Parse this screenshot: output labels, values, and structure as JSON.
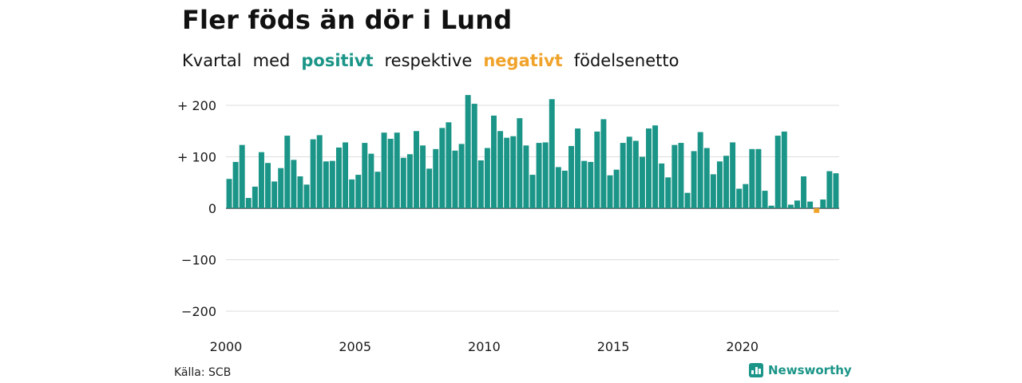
{
  "title": "Fler föds än dör i Lund",
  "subtitle": {
    "part1": "Kvartal",
    "part2": "med",
    "positive_word": "positivt",
    "part3": "respektive",
    "negative_word": "negativt",
    "part4": "födelsenetto"
  },
  "source": "Källa: SCB",
  "brand": "Newsworthy",
  "colors": {
    "positive": "#1a9587",
    "negative": "#f0a32a",
    "grid": "#dddddd",
    "brand": "#1a9587"
  },
  "chart_data": {
    "type": "bar",
    "x_start": "2000 Q1",
    "x_tick_labels": [
      "2000",
      "2005",
      "2010",
      "2015",
      "2020"
    ],
    "y_tick_labels": [
      "+ 200",
      "+ 100",
      "0",
      "−100",
      "−200"
    ],
    "ylim": [
      -200,
      220
    ],
    "grid": true,
    "values": [
      57,
      90,
      123,
      20,
      42,
      109,
      88,
      52,
      78,
      141,
      94,
      62,
      46,
      134,
      142,
      91,
      92,
      118,
      128,
      56,
      65,
      127,
      106,
      71,
      147,
      135,
      147,
      98,
      105,
      150,
      122,
      77,
      115,
      156,
      167,
      112,
      125,
      220,
      203,
      93,
      117,
      180,
      150,
      137,
      140,
      175,
      122,
      65,
      127,
      128,
      212,
      80,
      73,
      121,
      155,
      92,
      90,
      149,
      173,
      64,
      75,
      127,
      139,
      131,
      100,
      155,
      161,
      87,
      60,
      123,
      127,
      30,
      111,
      148,
      117,
      66,
      91,
      102,
      128,
      38,
      47,
      115,
      115,
      34,
      5,
      141,
      149,
      7,
      15,
      62,
      13,
      -9,
      17,
      72,
      68
    ]
  }
}
